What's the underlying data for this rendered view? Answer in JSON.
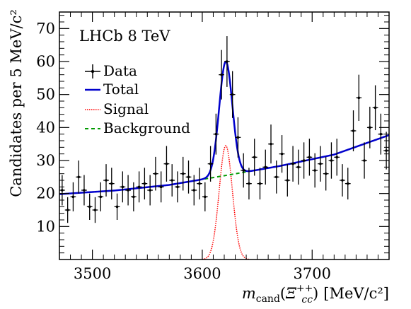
{
  "chart_data": {
    "type": "line",
    "experiment_label": "LHCb 8 TeV",
    "xlabel": {
      "base": "m",
      "sub": "cand",
      "paren_open": "(",
      "particle": "Ξ",
      "particle_sub": "cc",
      "particle_sup": "++",
      "paren_close": ")",
      "unit": "[MeV/c²]"
    },
    "ylabel": "Candidates per 5 MeV/c²",
    "xlim": [
      3470,
      3770
    ],
    "ylim": [
      0,
      75
    ],
    "x_ticks": [
      3500,
      3600,
      3700
    ],
    "y_ticks": [
      10,
      20,
      30,
      40,
      50,
      60,
      70
    ],
    "x_tick_labels": [
      "3500",
      "3600",
      "3700"
    ],
    "y_tick_labels": [
      "10",
      "20",
      "30",
      "40",
      "50",
      "60",
      "70"
    ],
    "legend": [
      {
        "label": "Data",
        "style": "errorbar",
        "color": "#000000"
      },
      {
        "label": "Total",
        "style": "solid",
        "color": "#0000cc"
      },
      {
        "label": "Signal",
        "style": "dotted",
        "color": "#ff0000"
      },
      {
        "label": "Background",
        "style": "dashed",
        "color": "#009900"
      }
    ],
    "series": [
      {
        "name": "Data",
        "x": [
          3472.5,
          3477.5,
          3482.5,
          3487.5,
          3492.5,
          3497.5,
          3502.5,
          3507.5,
          3512.5,
          3517.5,
          3522.5,
          3527.5,
          3532.5,
          3537.5,
          3542.5,
          3547.5,
          3552.5,
          3557.5,
          3562.5,
          3567.5,
          3572.5,
          3577.5,
          3582.5,
          3587.5,
          3592.5,
          3597.5,
          3602.5,
          3607.5,
          3612.5,
          3617.5,
          3622.5,
          3627.5,
          3632.5,
          3637.5,
          3642.5,
          3647.5,
          3652.5,
          3657.5,
          3662.5,
          3667.5,
          3672.5,
          3677.5,
          3682.5,
          3687.5,
          3692.5,
          3697.5,
          3702.5,
          3707.5,
          3712.5,
          3717.5,
          3722.5,
          3727.5,
          3732.5,
          3737.5,
          3742.5,
          3747.5,
          3752.5,
          3757.5,
          3762.5,
          3767.5
        ],
        "y": [
          21,
          15,
          19,
          25,
          21,
          16,
          15,
          19,
          24,
          23,
          16,
          22,
          21,
          19,
          22,
          23,
          21,
          26,
          22,
          29,
          24,
          22,
          26,
          25,
          21,
          23,
          19,
          29,
          38,
          56,
          60,
          50,
          37,
          27,
          23,
          31,
          23,
          28,
          35,
          25,
          32,
          24,
          29,
          28,
          30,
          31,
          27,
          29,
          26,
          30,
          31,
          24,
          23,
          39,
          49,
          30,
          40,
          46,
          38,
          33
        ],
        "yerr": [
          4.6,
          3.9,
          4.4,
          5.0,
          4.6,
          4.0,
          3.9,
          4.4,
          4.9,
          4.8,
          4.0,
          4.7,
          4.6,
          4.4,
          4.7,
          4.8,
          4.6,
          5.1,
          4.7,
          5.4,
          4.9,
          4.7,
          5.1,
          5.0,
          4.6,
          4.8,
          4.4,
          5.4,
          6.2,
          7.5,
          7.7,
          7.1,
          6.1,
          5.2,
          4.8,
          5.6,
          4.8,
          5.3,
          5.9,
          5.0,
          5.7,
          4.9,
          5.4,
          5.3,
          5.5,
          5.6,
          5.2,
          5.4,
          5.1,
          5.5,
          5.6,
          4.9,
          4.8,
          6.2,
          7.0,
          5.5,
          6.3,
          6.8,
          6.2,
          5.7
        ]
      },
      {
        "name": "Background",
        "fit": "quadratic",
        "x": [
          3470,
          3520,
          3570,
          3620,
          3670,
          3720,
          3770
        ],
        "y": [
          19.8,
          20.9,
          22.6,
          25.4,
          28.3,
          31.8,
          37.7
        ]
      },
      {
        "name": "Signal",
        "shape": "gaussian",
        "mean": 3621.4,
        "sigma": 6.0,
        "amplitude": 34.5
      }
    ]
  }
}
